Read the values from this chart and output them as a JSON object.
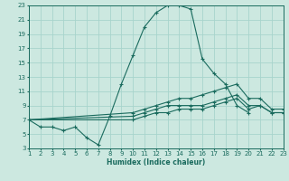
{
  "xlabel": "Humidex (Indice chaleur)",
  "bg_color": "#cce8e0",
  "grid_color": "#a8d4cc",
  "line_color": "#1a6b5e",
  "xlim": [
    1,
    23
  ],
  "ylim": [
    3,
    23
  ],
  "xticks": [
    1,
    2,
    3,
    4,
    5,
    6,
    7,
    8,
    9,
    10,
    11,
    12,
    13,
    14,
    15,
    16,
    17,
    18,
    19,
    20,
    21,
    22,
    23
  ],
  "yticks": [
    3,
    5,
    7,
    9,
    11,
    13,
    15,
    17,
    19,
    21,
    23
  ],
  "series": [
    {
      "x": [
        1,
        2,
        3,
        4,
        5,
        6,
        7,
        8,
        9,
        10,
        11,
        12,
        13,
        14,
        15,
        16,
        17,
        18,
        19,
        20
      ],
      "y": [
        7,
        6,
        6,
        5.5,
        6,
        4.5,
        3.5,
        7.5,
        12,
        16,
        20,
        22,
        23,
        23,
        22.5,
        15.5,
        13.5,
        12,
        9,
        8
      ]
    },
    {
      "x": [
        1,
        10,
        11,
        12,
        13,
        14,
        15,
        16,
        17,
        18,
        19,
        20,
        21,
        22,
        23
      ],
      "y": [
        7,
        8,
        8.5,
        9,
        9.5,
        10,
        10,
        10.5,
        11,
        11.5,
        12,
        10,
        10,
        8.5,
        8.5
      ]
    },
    {
      "x": [
        1,
        10,
        11,
        12,
        13,
        14,
        15,
        16,
        17,
        18,
        19,
        20,
        21,
        22,
        23
      ],
      "y": [
        7,
        7.5,
        8,
        8.5,
        9,
        9,
        9,
        9,
        9.5,
        10,
        10.5,
        9,
        9,
        8,
        8
      ]
    },
    {
      "x": [
        1,
        10,
        11,
        12,
        13,
        14,
        15,
        16,
        17,
        18,
        19,
        20,
        21,
        22,
        23
      ],
      "y": [
        7,
        7,
        7.5,
        8,
        8,
        8.5,
        8.5,
        8.5,
        9,
        9.5,
        10,
        8.5,
        9,
        8,
        8
      ]
    }
  ]
}
